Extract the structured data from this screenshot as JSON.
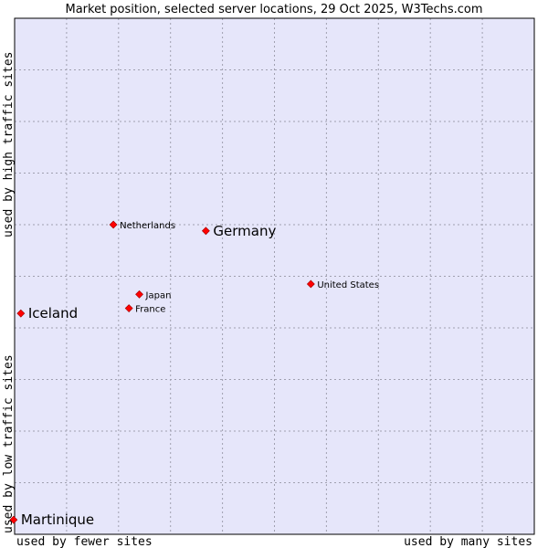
{
  "chart_data": {
    "type": "scatter",
    "title": "Market position, selected server locations, 29 Oct 2025, W3Techs.com",
    "xlabel_left": "used by fewer sites",
    "xlabel_right": "used by many sites",
    "ylabel_low": "used by low traffic sites",
    "ylabel_high": "used by high traffic sites",
    "xlim": [
      0,
      100
    ],
    "ylim": [
      0,
      100
    ],
    "grid": true,
    "grid_divisions": {
      "x": 10,
      "y": 10
    },
    "colors": {
      "plot_bg": "#e6e6fa",
      "grid": "#a0a0b0",
      "marker": "#ff0000",
      "marker_edge": "#990000",
      "frame": "#000000"
    },
    "points": [
      {
        "name": "Netherlands",
        "x": 19.0,
        "y": 60.0,
        "label_size": "small"
      },
      {
        "name": "Germany",
        "x": 36.8,
        "y": 58.8,
        "label_size": "large"
      },
      {
        "name": "United States",
        "x": 57.0,
        "y": 48.5,
        "label_size": "small"
      },
      {
        "name": "Japan",
        "x": 24.0,
        "y": 46.5,
        "label_size": "small"
      },
      {
        "name": "France",
        "x": 22.0,
        "y": 43.8,
        "label_size": "small"
      },
      {
        "name": "Iceland",
        "x": 1.2,
        "y": 42.8,
        "label_size": "large"
      },
      {
        "name": "Martinique",
        "x": -0.2,
        "y": 2.8,
        "label_size": "large"
      }
    ]
  }
}
